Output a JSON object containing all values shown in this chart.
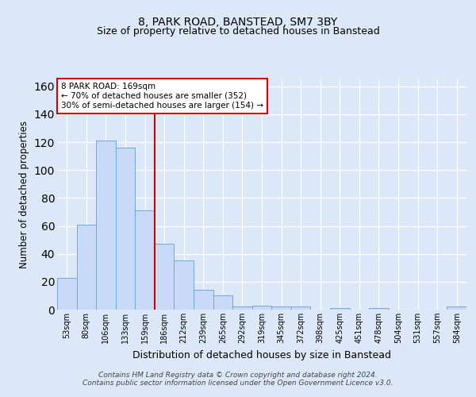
{
  "title": "8, PARK ROAD, BANSTEAD, SM7 3BY",
  "subtitle": "Size of property relative to detached houses in Banstead",
  "xlabel": "Distribution of detached houses by size in Banstead",
  "ylabel": "Number of detached properties",
  "bar_labels": [
    "53sqm",
    "80sqm",
    "106sqm",
    "133sqm",
    "159sqm",
    "186sqm",
    "212sqm",
    "239sqm",
    "265sqm",
    "292sqm",
    "319sqm",
    "345sqm",
    "372sqm",
    "398sqm",
    "425sqm",
    "451sqm",
    "478sqm",
    "504sqm",
    "531sqm",
    "557sqm",
    "584sqm"
  ],
  "bar_values": [
    23,
    61,
    121,
    116,
    71,
    47,
    35,
    14,
    10,
    2,
    3,
    2,
    2,
    0,
    1,
    0,
    1,
    0,
    0,
    0,
    2
  ],
  "bar_color": "#c9daf8",
  "bar_edge_color": "#6fa8dc",
  "ylim": [
    0,
    165
  ],
  "yticks": [
    0,
    20,
    40,
    60,
    80,
    100,
    120,
    140,
    160
  ],
  "vline_x": 4.5,
  "vline_color": "#cc0000",
  "annotation_text": "8 PARK ROAD: 169sqm\n← 70% of detached houses are smaller (352)\n30% of semi-detached houses are larger (154) →",
  "annotation_box_color": "#ffffff",
  "annotation_box_edge": "#cc0000",
  "footer_text": "Contains HM Land Registry data © Crown copyright and database right 2024.\nContains public sector information licensed under the Open Government Licence v3.0.",
  "bg_color": "#dce8f8",
  "plot_bg_color": "#dce8f8",
  "grid_color": "#ffffff",
  "title_fontsize": 10,
  "subtitle_fontsize": 9,
  "xlabel_fontsize": 9,
  "ylabel_fontsize": 8.5
}
